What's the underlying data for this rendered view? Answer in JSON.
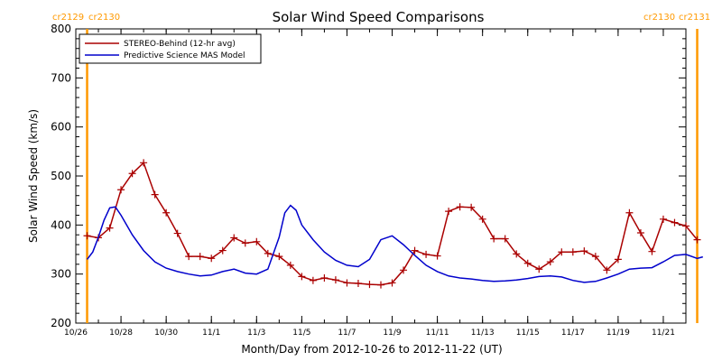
{
  "chart_data": {
    "type": "line",
    "title": "Solar Wind Speed Comparisons",
    "xlabel": "Month/Day from 2012-10-26 to 2012-11-22 (UT)",
    "ylabel": "Solar Wind Speed (km/s)",
    "xlim": [
      "2012-10-26T00:00",
      "2012-11-22T00:00"
    ],
    "ylim": [
      200,
      800
    ],
    "y_ticks": [
      200,
      300,
      400,
      500,
      600,
      700,
      800
    ],
    "x_ticks": [
      {
        "label": "10/26",
        "date": "2012-10-26"
      },
      {
        "label": "10/28",
        "date": "2012-10-28"
      },
      {
        "label": "10/30",
        "date": "2012-10-30"
      },
      {
        "label": "11/1",
        "date": "2012-11-01"
      },
      {
        "label": "11/3",
        "date": "2012-11-03"
      },
      {
        "label": "11/5",
        "date": "2012-11-05"
      },
      {
        "label": "11/7",
        "date": "2012-11-07"
      },
      {
        "label": "11/9",
        "date": "2012-11-09"
      },
      {
        "label": "11/11",
        "date": "2012-11-11"
      },
      {
        "label": "11/13",
        "date": "2012-11-13"
      },
      {
        "label": "11/15",
        "date": "2012-11-15"
      },
      {
        "label": "11/17",
        "date": "2012-11-17"
      },
      {
        "label": "11/19",
        "date": "2012-11-19"
      },
      {
        "label": "11/21",
        "date": "2012-11-21"
      }
    ],
    "legend_position": "top-left",
    "carrington_markers": [
      {
        "date": "2012-10-26T12:00",
        "label_left": "cr2129",
        "label_right": "cr2130",
        "color": "#ff9900"
      },
      {
        "date": "2012-11-22T12:00",
        "label_left": "cr2130",
        "label_right": "cr2131",
        "color": "#ff9900"
      }
    ],
    "series": [
      {
        "name": "STEREO-Behind (12-hr avg)",
        "color": "#aa0000",
        "marker": "plus",
        "x": [
          "2012-10-26T12:00",
          "2012-10-27T00:00",
          "2012-10-27T12:00",
          "2012-10-28T00:00",
          "2012-10-28T12:00",
          "2012-10-29T00:00",
          "2012-10-29T12:00",
          "2012-10-30T00:00",
          "2012-10-30T12:00",
          "2012-10-31T00:00",
          "2012-10-31T12:00",
          "2012-11-01T00:00",
          "2012-11-01T12:00",
          "2012-11-02T00:00",
          "2012-11-02T12:00",
          "2012-11-03T00:00",
          "2012-11-03T12:00",
          "2012-11-04T00:00",
          "2012-11-04T12:00",
          "2012-11-05T00:00",
          "2012-11-05T12:00",
          "2012-11-06T00:00",
          "2012-11-06T12:00",
          "2012-11-07T00:00",
          "2012-11-07T12:00",
          "2012-11-08T00:00",
          "2012-11-08T12:00",
          "2012-11-09T00:00",
          "2012-11-09T12:00",
          "2012-11-10T00:00",
          "2012-11-10T12:00",
          "2012-11-11T00:00",
          "2012-11-11T12:00",
          "2012-11-12T00:00",
          "2012-11-12T12:00",
          "2012-11-13T00:00",
          "2012-11-13T12:00",
          "2012-11-14T00:00",
          "2012-11-14T12:00",
          "2012-11-15T00:00",
          "2012-11-15T12:00",
          "2012-11-16T00:00",
          "2012-11-16T12:00",
          "2012-11-17T00:00",
          "2012-11-17T12:00",
          "2012-11-18T00:00",
          "2012-11-18T12:00",
          "2012-11-19T00:00",
          "2012-11-19T12:00",
          "2012-11-20T00:00",
          "2012-11-20T12:00",
          "2012-11-21T00:00",
          "2012-11-21T12:00",
          "2012-11-22T00:00",
          "2012-11-22T12:00"
        ],
        "y": [
          378,
          374,
          394,
          472,
          505,
          527,
          462,
          425,
          383,
          336,
          336,
          332,
          348,
          374,
          363,
          366,
          342,
          336,
          318,
          295,
          287,
          292,
          288,
          282,
          281,
          279,
          278,
          282,
          308,
          348,
          340,
          337,
          428,
          437,
          436,
          412,
          372,
          372,
          341,
          322,
          310,
          325,
          345,
          345,
          347,
          336,
          308,
          330,
          425,
          384,
          346,
          412,
          405,
          398,
          370
        ]
      },
      {
        "name": "Predictive Science MAS Model",
        "color": "#0000cc",
        "x": [
          "2012-10-26T12:00",
          "2012-10-26T18:00",
          "2012-10-27T00:00",
          "2012-10-27T06:00",
          "2012-10-27T12:00",
          "2012-10-27T18:00",
          "2012-10-28T00:00",
          "2012-10-28T12:00",
          "2012-10-29T00:00",
          "2012-10-29T12:00",
          "2012-10-30T00:00",
          "2012-10-30T12:00",
          "2012-10-31T00:00",
          "2012-10-31T12:00",
          "2012-11-01T00:00",
          "2012-11-01T12:00",
          "2012-11-02T00:00",
          "2012-11-02T12:00",
          "2012-11-03T00:00",
          "2012-11-03T12:00",
          "2012-11-04T00:00",
          "2012-11-04T06:00",
          "2012-11-04T12:00",
          "2012-11-04T18:00",
          "2012-11-05T00:00",
          "2012-11-05T12:00",
          "2012-11-06T00:00",
          "2012-11-06T12:00",
          "2012-11-07T00:00",
          "2012-11-07T12:00",
          "2012-11-08T00:00",
          "2012-11-08T12:00",
          "2012-11-09T00:00",
          "2012-11-09T12:00",
          "2012-11-10T00:00",
          "2012-11-10T12:00",
          "2012-11-11T00:00",
          "2012-11-11T12:00",
          "2012-11-12T00:00",
          "2012-11-12T12:00",
          "2012-11-13T00:00",
          "2012-11-13T12:00",
          "2012-11-14T00:00",
          "2012-11-14T12:00",
          "2012-11-15T00:00",
          "2012-11-15T12:00",
          "2012-11-16T00:00",
          "2012-11-16T12:00",
          "2012-11-17T00:00",
          "2012-11-17T12:00",
          "2012-11-18T00:00",
          "2012-11-18T12:00",
          "2012-11-19T00:00",
          "2012-11-19T12:00",
          "2012-11-20T00:00",
          "2012-11-20T12:00",
          "2012-11-21T00:00",
          "2012-11-21T12:00",
          "2012-11-22T00:00",
          "2012-11-22T12:00",
          "2012-11-22T18:00"
        ],
        "y": [
          330,
          345,
          375,
          410,
          435,
          437,
          420,
          380,
          348,
          325,
          312,
          305,
          300,
          296,
          298,
          305,
          310,
          302,
          300,
          310,
          375,
          425,
          440,
          430,
          400,
          370,
          345,
          328,
          318,
          315,
          330,
          370,
          378,
          360,
          338,
          318,
          305,
          296,
          292,
          290,
          287,
          285,
          286,
          288,
          291,
          295,
          296,
          294,
          287,
          283,
          285,
          292,
          300,
          310,
          312,
          313,
          325,
          338,
          340,
          332,
          335
        ]
      }
    ]
  }
}
